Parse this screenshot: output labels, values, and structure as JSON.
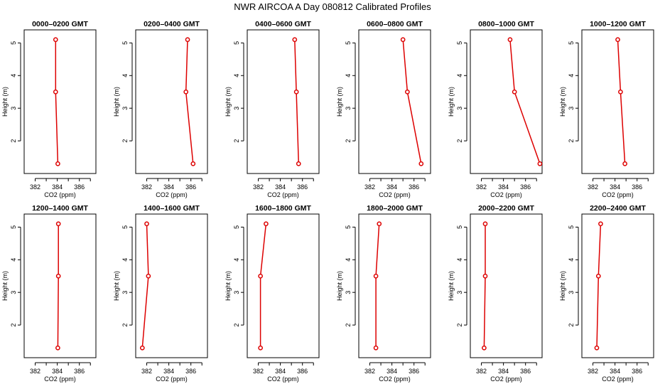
{
  "figure": {
    "title": "NWR AIRCOA A  Day 080812  Calibrated Profiles"
  },
  "style": {
    "line_color": "#dd0000",
    "axis_color": "#000000"
  },
  "axes": {
    "xlabel": "CO2 (ppm)",
    "ylabel": "Height (m)",
    "xlim": [
      381,
      387.5
    ],
    "ylim": [
      1.0,
      5.4
    ],
    "xticks": [
      382,
      384,
      386
    ],
    "yticks": [
      2,
      3,
      4,
      5
    ]
  },
  "chart_data": [
    {
      "type": "line",
      "title": "0000–0200 GMT",
      "series": [
        {
          "x": [
            384.05,
            383.85,
            383.85
          ],
          "y": [
            1.3,
            3.5,
            5.1
          ]
        }
      ]
    },
    {
      "type": "line",
      "title": "0200–0400 GMT",
      "series": [
        {
          "x": [
            386.2,
            385.55,
            385.7
          ],
          "y": [
            1.3,
            3.5,
            5.1
          ]
        }
      ]
    },
    {
      "type": "line",
      "title": "0400–0600 GMT",
      "series": [
        {
          "x": [
            385.65,
            385.45,
            385.3
          ],
          "y": [
            1.3,
            3.5,
            5.1
          ]
        }
      ]
    },
    {
      "type": "line",
      "title": "0600–0800 GMT",
      "series": [
        {
          "x": [
            386.65,
            385.4,
            385.0
          ],
          "y": [
            1.3,
            3.5,
            5.1
          ]
        }
      ]
    },
    {
      "type": "line",
      "title": "0800–1000 GMT",
      "series": [
        {
          "x": [
            387.3,
            385.0,
            384.6
          ],
          "y": [
            1.3,
            3.5,
            5.1
          ]
        }
      ]
    },
    {
      "type": "line",
      "title": "1000–1200 GMT",
      "series": [
        {
          "x": [
            384.9,
            384.5,
            384.25
          ],
          "y": [
            1.3,
            3.5,
            5.1
          ]
        }
      ]
    },
    {
      "type": "line",
      "title": "1200–1400 GMT",
      "series": [
        {
          "x": [
            384.05,
            384.1,
            384.1
          ],
          "y": [
            1.3,
            3.5,
            5.1
          ]
        }
      ]
    },
    {
      "type": "line",
      "title": "1400–1600 GMT",
      "series": [
        {
          "x": [
            381.6,
            382.15,
            382.0
          ],
          "y": [
            1.3,
            3.5,
            5.1
          ]
        }
      ]
    },
    {
      "type": "line",
      "title": "1600–1800 GMT",
      "series": [
        {
          "x": [
            382.2,
            382.2,
            382.7
          ],
          "y": [
            1.3,
            3.5,
            5.1
          ]
        }
      ]
    },
    {
      "type": "line",
      "title": "1800–2000 GMT",
      "series": [
        {
          "x": [
            382.55,
            382.55,
            382.85
          ],
          "y": [
            1.3,
            3.5,
            5.1
          ]
        }
      ]
    },
    {
      "type": "line",
      "title": "2000–2200 GMT",
      "series": [
        {
          "x": [
            382.25,
            382.35,
            382.35
          ],
          "y": [
            1.3,
            3.5,
            5.1
          ]
        }
      ]
    },
    {
      "type": "line",
      "title": "2200–2400 GMT",
      "series": [
        {
          "x": [
            382.35,
            382.5,
            382.7
          ],
          "y": [
            1.3,
            3.5,
            5.1
          ]
        }
      ]
    }
  ]
}
